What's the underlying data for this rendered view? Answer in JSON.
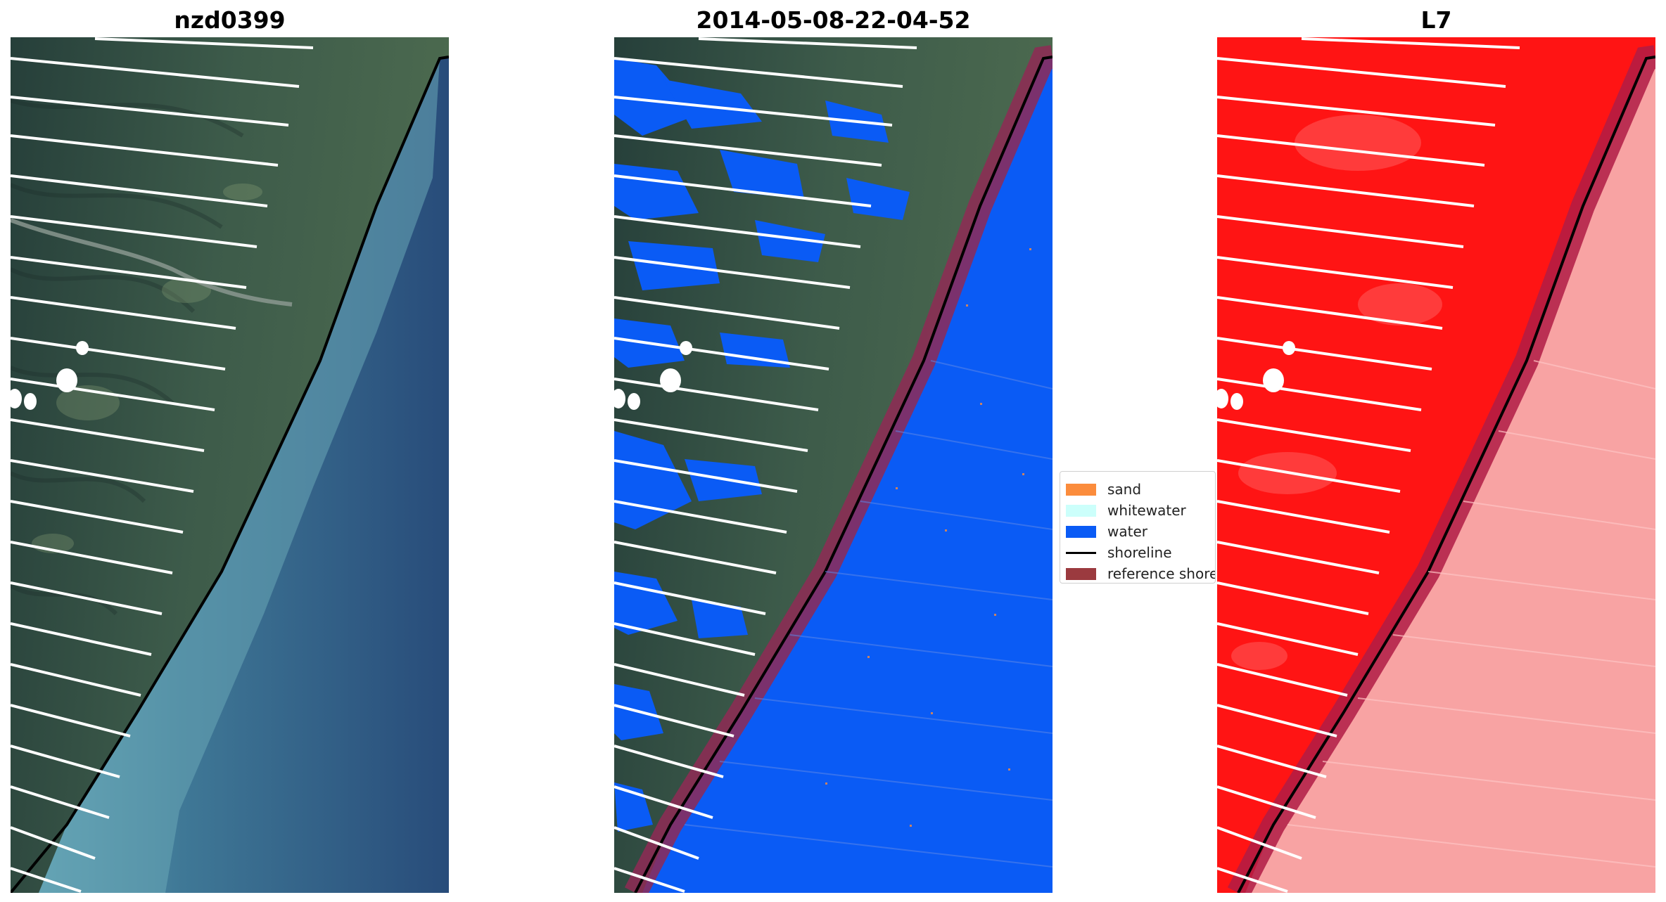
{
  "panels": [
    {
      "title": "nzd0399"
    },
    {
      "title": "2014-05-08-22-04-52"
    },
    {
      "title": "L7"
    }
  ],
  "legend": {
    "items": [
      {
        "label": "sand",
        "color": "#fb8c3c",
        "kind": "patch"
      },
      {
        "label": "whitewater",
        "color": "#ccfffb",
        "kind": "patch"
      },
      {
        "label": "water",
        "color": "#0a5bf5",
        "kind": "patch"
      },
      {
        "label": "shoreline",
        "color": "#000000",
        "kind": "line"
      },
      {
        "label": "reference shoreline buffer",
        "color": "#9b3a3f",
        "kind": "patch"
      }
    ]
  },
  "colors": {
    "land": "#3b5a4a",
    "sea": "#2c5585",
    "shallow_sea": "#4f8fa8",
    "classified_water": "#0a5bf5",
    "buffer": "#8f2a55",
    "mask_land": "#ff1414",
    "mask_sea": "#f8a3a3"
  }
}
